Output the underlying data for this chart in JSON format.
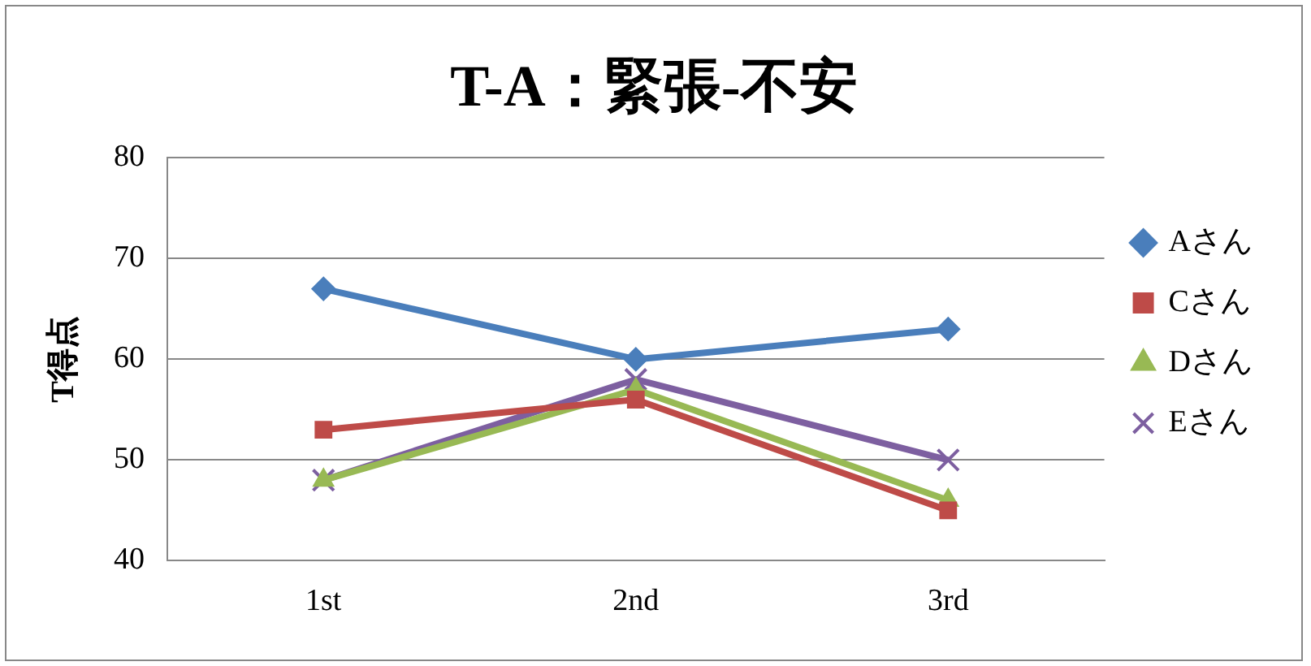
{
  "chart_data": {
    "type": "line",
    "title": "T-A：緊張-不安",
    "ylabel": "T得点",
    "categories": [
      "1st",
      "2nd",
      "3rd"
    ],
    "series": [
      {
        "name": "Aさん",
        "color": "#4a7ebb",
        "marker": "diamond",
        "values": [
          67,
          60,
          63
        ]
      },
      {
        "name": "Cさん",
        "color": "#be4b48",
        "marker": "square",
        "values": [
          53,
          56,
          45
        ]
      },
      {
        "name": "Dさん",
        "color": "#98b954",
        "marker": "triangle",
        "values": [
          48,
          57,
          46
        ]
      },
      {
        "name": "Eさん",
        "color": "#7d5fa0",
        "marker": "cross",
        "values": [
          48,
          58,
          50
        ]
      }
    ],
    "ylim": [
      40,
      80
    ],
    "yticks": [
      40,
      50,
      60,
      70,
      80
    ],
    "grid": "y",
    "legend": "right"
  }
}
